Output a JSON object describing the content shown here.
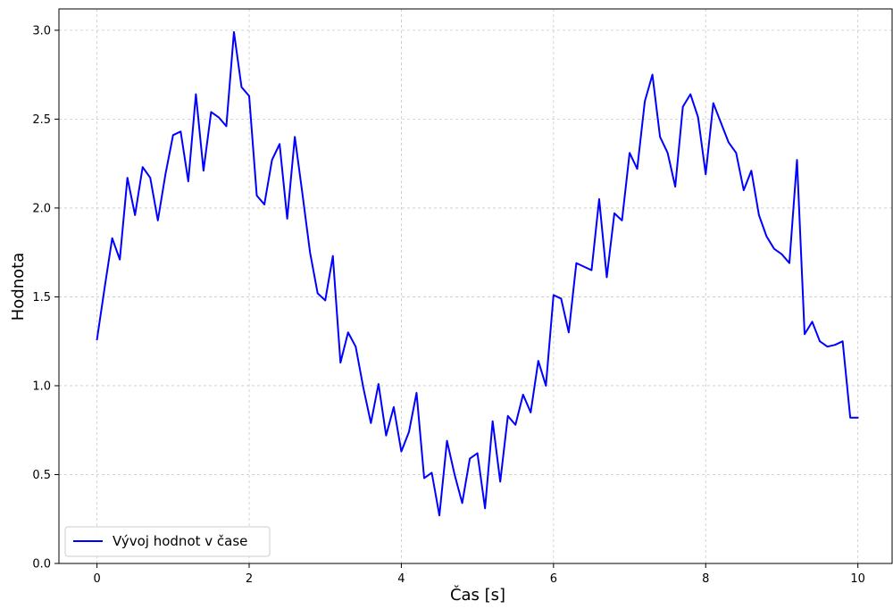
{
  "chart_data": {
    "type": "line",
    "xlabel": "Čas [s]",
    "ylabel": "Hodnota",
    "xlim": [
      -0.5,
      10.45
    ],
    "ylim": [
      0.0,
      3.12
    ],
    "xticks": [
      0,
      2,
      4,
      6,
      8,
      10
    ],
    "yticks": [
      0.0,
      0.5,
      1.0,
      1.5,
      2.0,
      2.5,
      3.0
    ],
    "xtick_labels": [
      "0",
      "2",
      "4",
      "6",
      "8",
      "10"
    ],
    "ytick_labels": [
      "0.0",
      "0.5",
      "1.0",
      "1.5",
      "2.0",
      "2.5",
      "3.0"
    ],
    "grid": true,
    "legend_position": "lower-left",
    "series": [
      {
        "name": "Vývoj hodnot v čase",
        "color": "#0000ff",
        "x": [
          0.0,
          0.1,
          0.2,
          0.3,
          0.4,
          0.5,
          0.6,
          0.7,
          0.8,
          0.9,
          1.0,
          1.1,
          1.2,
          1.3,
          1.4,
          1.5,
          1.6,
          1.7,
          1.8,
          1.9,
          2.0,
          2.1,
          2.2,
          2.3,
          2.4,
          2.5,
          2.6,
          2.7,
          2.8,
          2.9,
          3.0,
          3.1,
          3.2,
          3.3,
          3.4,
          3.5,
          3.6,
          3.7,
          3.8,
          3.9,
          4.0,
          4.1,
          4.2,
          4.3,
          4.4,
          4.5,
          4.6,
          4.7,
          4.8,
          4.9,
          5.0,
          5.1,
          5.2,
          5.3,
          5.4,
          5.5,
          5.6,
          5.7,
          5.8,
          5.9,
          6.0,
          6.1,
          6.2,
          6.3,
          6.4,
          6.5,
          6.6,
          6.7,
          6.8,
          6.9,
          7.0,
          7.1,
          7.2,
          7.3,
          7.4,
          7.5,
          7.6,
          7.7,
          7.8,
          7.9,
          8.0,
          8.1,
          8.2,
          8.3,
          8.4,
          8.5,
          8.6,
          8.7,
          8.8,
          8.9,
          9.0,
          9.1,
          9.2,
          9.3,
          9.4,
          9.5,
          9.6,
          9.7,
          9.8,
          9.9,
          10.0
        ],
        "y": [
          1.26,
          1.55,
          1.83,
          1.71,
          2.17,
          1.96,
          2.23,
          2.17,
          1.93,
          2.19,
          2.41,
          2.43,
          2.15,
          2.64,
          2.21,
          2.54,
          2.51,
          2.46,
          2.99,
          2.68,
          2.63,
          2.07,
          2.02,
          2.27,
          2.36,
          1.94,
          2.4,
          2.08,
          1.75,
          1.52,
          1.48,
          1.73,
          1.13,
          1.3,
          1.22,
          0.99,
          0.79,
          1.01,
          0.72,
          0.88,
          0.63,
          0.74,
          0.96,
          0.48,
          0.51,
          0.27,
          0.69,
          0.5,
          0.34,
          0.59,
          0.62,
          0.31,
          0.8,
          0.46,
          0.83,
          0.78,
          0.95,
          0.85,
          1.14,
          1.0,
          1.51,
          1.49,
          1.3,
          1.69,
          1.67,
          1.65,
          2.05,
          1.61,
          1.97,
          1.93,
          2.31,
          2.22,
          2.6,
          2.75,
          2.4,
          2.31,
          2.12,
          2.57,
          2.64,
          2.51,
          2.19,
          2.59,
          2.48,
          2.37,
          2.31,
          2.1,
          2.21,
          1.96,
          1.84,
          1.77,
          1.74,
          1.69,
          2.27,
          1.29,
          1.36,
          1.25,
          1.22,
          1.23,
          1.25,
          0.82,
          0.82
        ]
      }
    ]
  }
}
